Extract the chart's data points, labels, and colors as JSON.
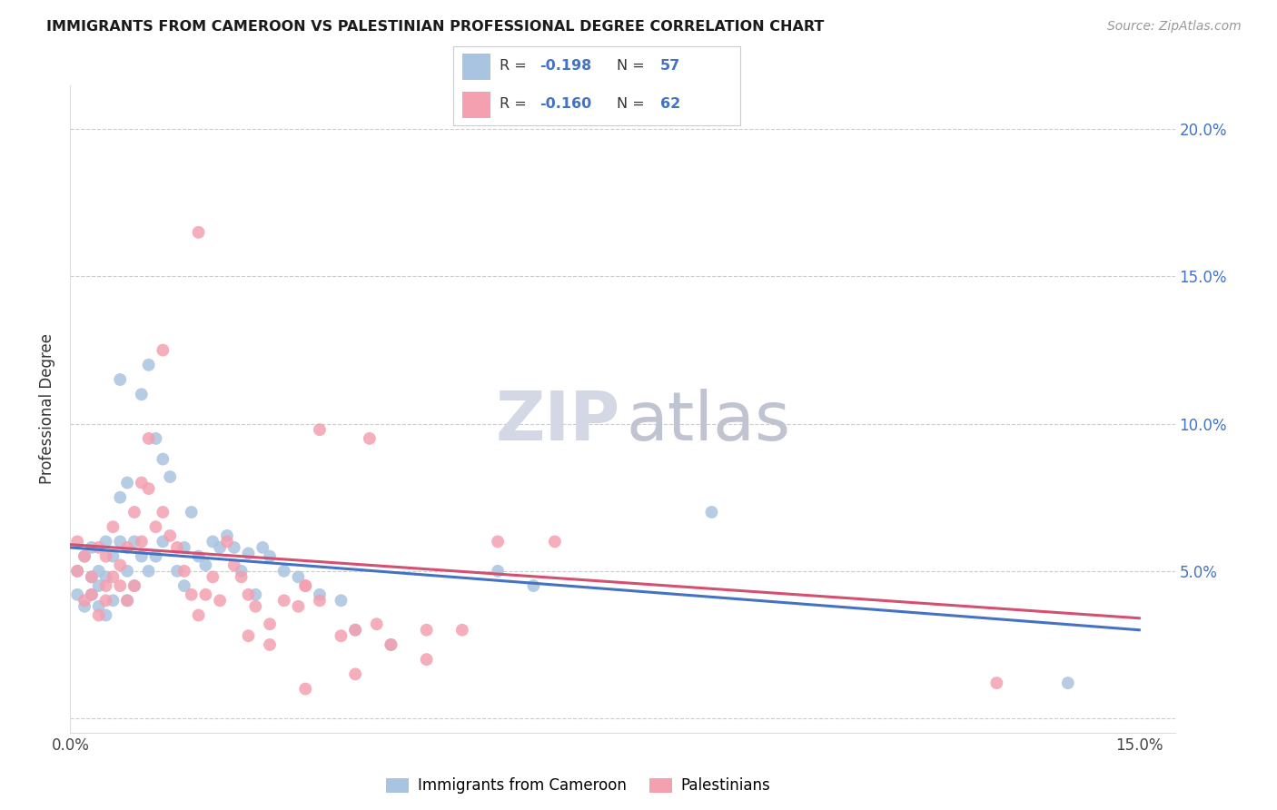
{
  "title": "IMMIGRANTS FROM CAMEROON VS PALESTINIAN PROFESSIONAL DEGREE CORRELATION CHART",
  "source": "Source: ZipAtlas.com",
  "ylabel": "Professional Degree",
  "legend_label1": "Immigrants from Cameroon",
  "legend_label2": "Palestinians",
  "legend_r1": "-0.198",
  "legend_n1": "57",
  "legend_r2": "-0.160",
  "legend_n2": "62",
  "color_blue": "#a8c4e0",
  "color_pink": "#f4a0b0",
  "line_color_blue": "#4472c4",
  "line_color_pink": "#d45070",
  "right_axis_color": "#4472c4",
  "xlim": [
    0.0,
    0.155
  ],
  "ylim": [
    -0.005,
    0.215
  ],
  "yticks": [
    0.0,
    0.05,
    0.1,
    0.15,
    0.2
  ],
  "ytick_labels": [
    "",
    "5.0%",
    "10.0%",
    "15.0%",
    "20.0%"
  ],
  "xtick_labels": [
    "0.0%",
    "",
    "",
    "15.0%"
  ],
  "blue_x": [
    0.001,
    0.001,
    0.002,
    0.002,
    0.003,
    0.003,
    0.003,
    0.004,
    0.004,
    0.004,
    0.005,
    0.005,
    0.005,
    0.006,
    0.006,
    0.007,
    0.007,
    0.007,
    0.008,
    0.008,
    0.008,
    0.009,
    0.009,
    0.01,
    0.01,
    0.011,
    0.011,
    0.012,
    0.012,
    0.013,
    0.013,
    0.014,
    0.015,
    0.016,
    0.016,
    0.017,
    0.018,
    0.019,
    0.02,
    0.021,
    0.022,
    0.023,
    0.024,
    0.025,
    0.026,
    0.027,
    0.028,
    0.03,
    0.032,
    0.035,
    0.038,
    0.04,
    0.045,
    0.06,
    0.065,
    0.09,
    0.14
  ],
  "blue_y": [
    0.05,
    0.042,
    0.055,
    0.038,
    0.048,
    0.042,
    0.058,
    0.05,
    0.045,
    0.038,
    0.06,
    0.048,
    0.035,
    0.055,
    0.04,
    0.075,
    0.115,
    0.06,
    0.08,
    0.05,
    0.04,
    0.06,
    0.045,
    0.11,
    0.055,
    0.12,
    0.05,
    0.095,
    0.055,
    0.088,
    0.06,
    0.082,
    0.05,
    0.045,
    0.058,
    0.07,
    0.055,
    0.052,
    0.06,
    0.058,
    0.062,
    0.058,
    0.05,
    0.056,
    0.042,
    0.058,
    0.055,
    0.05,
    0.048,
    0.042,
    0.04,
    0.03,
    0.025,
    0.05,
    0.045,
    0.07,
    0.012
  ],
  "pink_x": [
    0.001,
    0.001,
    0.002,
    0.002,
    0.003,
    0.003,
    0.004,
    0.004,
    0.005,
    0.005,
    0.005,
    0.006,
    0.006,
    0.007,
    0.007,
    0.008,
    0.008,
    0.009,
    0.009,
    0.01,
    0.01,
    0.011,
    0.011,
    0.012,
    0.013,
    0.013,
    0.014,
    0.015,
    0.016,
    0.017,
    0.018,
    0.019,
    0.02,
    0.021,
    0.022,
    0.023,
    0.024,
    0.025,
    0.026,
    0.028,
    0.03,
    0.032,
    0.033,
    0.035,
    0.038,
    0.04,
    0.042,
    0.043,
    0.045,
    0.05,
    0.055,
    0.06,
    0.033,
    0.028,
    0.035,
    0.025,
    0.04,
    0.05,
    0.068,
    0.13,
    0.018,
    0.033
  ],
  "pink_y": [
    0.06,
    0.05,
    0.055,
    0.04,
    0.048,
    0.042,
    0.058,
    0.035,
    0.055,
    0.045,
    0.04,
    0.065,
    0.048,
    0.045,
    0.052,
    0.058,
    0.04,
    0.07,
    0.045,
    0.08,
    0.06,
    0.095,
    0.078,
    0.065,
    0.125,
    0.07,
    0.062,
    0.058,
    0.05,
    0.042,
    0.035,
    0.042,
    0.048,
    0.04,
    0.06,
    0.052,
    0.048,
    0.042,
    0.038,
    0.032,
    0.04,
    0.038,
    0.045,
    0.04,
    0.028,
    0.015,
    0.095,
    0.032,
    0.025,
    0.03,
    0.03,
    0.06,
    0.045,
    0.025,
    0.098,
    0.028,
    0.03,
    0.02,
    0.06,
    0.012,
    0.165,
    0.01
  ],
  "wm_zip_color": "#d8dce8",
  "wm_atlas_color": "#c8ccd8"
}
